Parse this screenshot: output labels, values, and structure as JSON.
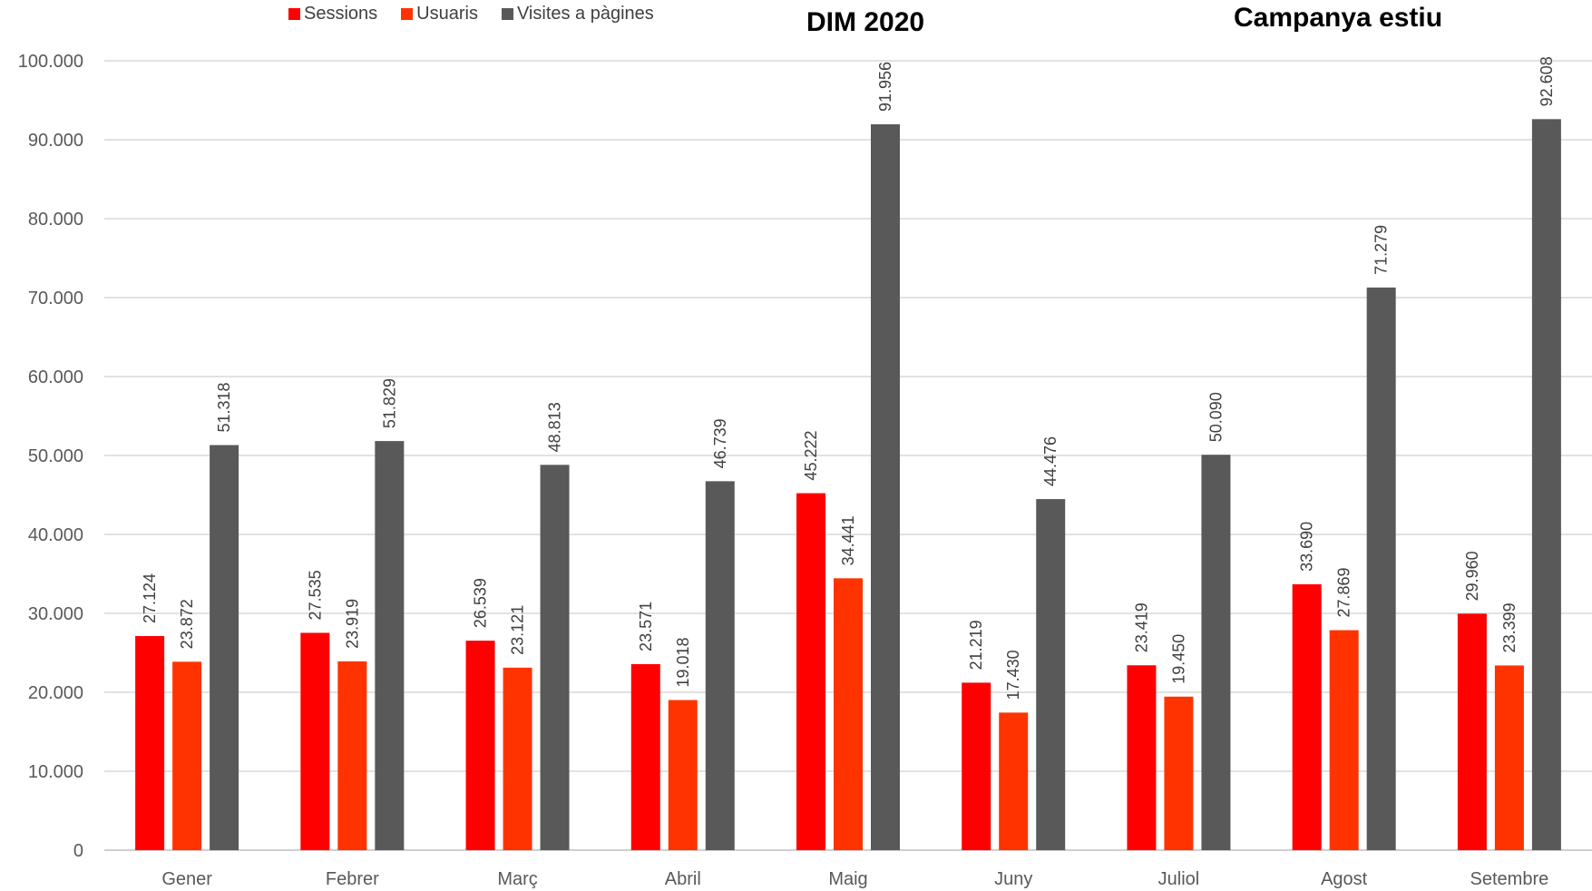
{
  "chart_data": {
    "type": "bar",
    "title": "",
    "xlabel": "",
    "ylabel": "",
    "ylim": [
      0,
      100000
    ],
    "yticks": [
      0,
      10000,
      20000,
      30000,
      40000,
      50000,
      60000,
      70000,
      80000,
      90000,
      100000
    ],
    "ytick_labels": [
      "0",
      "10.000",
      "20.000",
      "30.000",
      "40.000",
      "50.000",
      "60.000",
      "70.000",
      "80.000",
      "90.000",
      "100.000"
    ],
    "grid": true,
    "legend_position": "top-left",
    "categories": [
      "Gener",
      "Febrer",
      "Març",
      "Abril",
      "Maig",
      "Juny",
      "Juliol",
      "Agost",
      "Setembre"
    ],
    "series": [
      {
        "name": "Sessions",
        "color": "#ff0000",
        "values": [
          27124,
          27535,
          26539,
          23571,
          45222,
          21219,
          23419,
          33690,
          29960
        ],
        "labels": [
          "27.124",
          "27.535",
          "26.539",
          "23.571",
          "45.222",
          "21.219",
          "23.419",
          "33.690",
          "29.960"
        ]
      },
      {
        "name": "Usuaris",
        "color": "#ff3300",
        "values": [
          23872,
          23919,
          23121,
          19018,
          34441,
          17430,
          19450,
          27869,
          23399
        ],
        "labels": [
          "23.872",
          "23.919",
          "23.121",
          "19.018",
          "34.441",
          "17.430",
          "19.450",
          "27.869",
          "23.399"
        ]
      },
      {
        "name": "Visites a pàgines",
        "color": "#595959",
        "values": [
          51318,
          51829,
          48813,
          46739,
          91956,
          44476,
          50090,
          71279,
          92608
        ],
        "labels": [
          "51.318",
          "51.829",
          "48.813",
          "46.739",
          "91.956",
          "44.476",
          "50.090",
          "71.279",
          "92.608"
        ]
      }
    ],
    "annotations": [
      "DIM 2020",
      "Campanya estiu"
    ]
  }
}
